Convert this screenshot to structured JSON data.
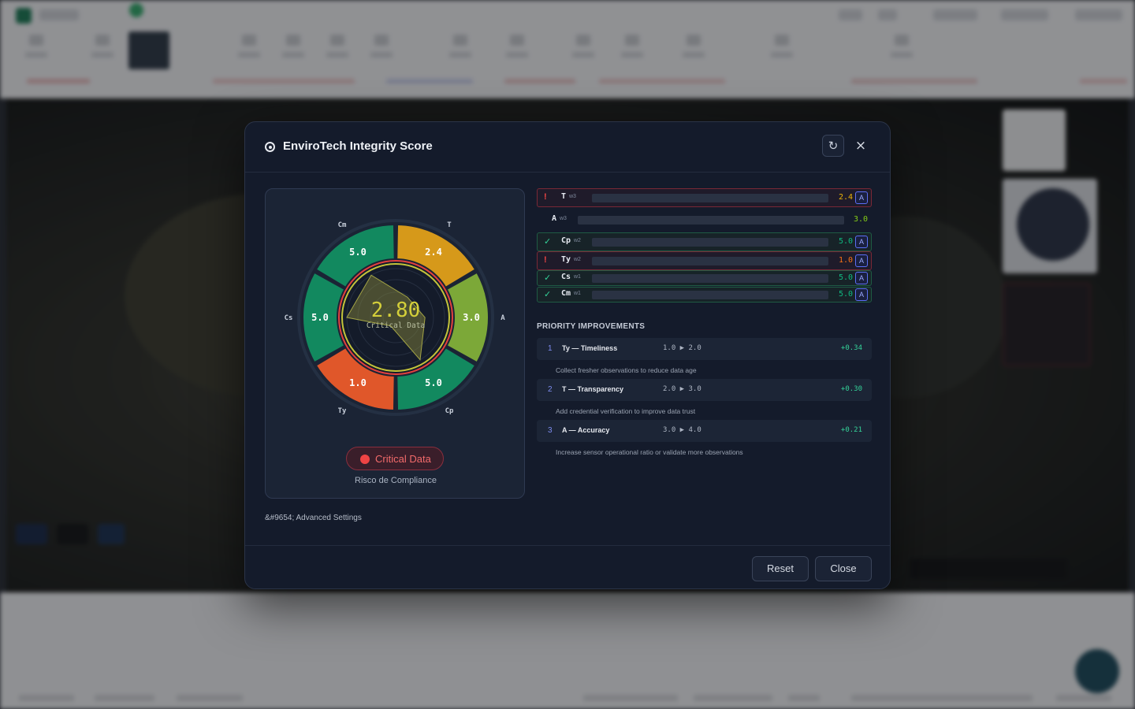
{
  "modal": {
    "title": "EnviroTech Integrity Score",
    "refresh_icon": "↻",
    "close_icon": "×",
    "advanced_settings": "&#9654; Advanced Settings"
  },
  "gauge": {
    "score": "2.80",
    "score_label": "Critical Data",
    "status_text": "Critical Data",
    "status_sub": "Risco de Compliance",
    "status_color": "#ef4444",
    "segments": [
      {
        "code": "T",
        "value": "2.4",
        "color": "#d6991a"
      },
      {
        "code": "A",
        "value": "3.0",
        "color": "#7ca838"
      },
      {
        "code": "Cp",
        "value": "5.0",
        "color": "#12895f"
      },
      {
        "code": "Ty",
        "value": "1.0",
        "color": "#e0572a"
      },
      {
        "code": "Cs",
        "value": "5.0",
        "color": "#12895f"
      },
      {
        "code": "Cm",
        "value": "5.0",
        "color": "#12895f"
      }
    ]
  },
  "dimensions": [
    {
      "mark": "!",
      "code": "T",
      "weight": "w3",
      "value": "2.4",
      "state": "bad",
      "value_color": "#eab308",
      "badge": "A"
    },
    {
      "mark": "",
      "code": "A",
      "weight": "w3",
      "value": "3.0",
      "state": "plain",
      "value_color": "#84cc16",
      "badge": ""
    },
    {
      "mark": "✓",
      "code": "Cp",
      "weight": "w2",
      "value": "5.0",
      "state": "good",
      "value_color": "#10b981",
      "badge": "A"
    },
    {
      "mark": "!",
      "code": "Ty",
      "weight": "w2",
      "value": "1.0",
      "state": "bad",
      "value_color": "#f97316",
      "badge": "A"
    },
    {
      "mark": "✓",
      "code": "Cs",
      "weight": "w1",
      "value": "5.0",
      "state": "good",
      "value_color": "#10b981",
      "badge": "A"
    },
    {
      "mark": "✓",
      "code": "Cm",
      "weight": "w1",
      "value": "5.0",
      "state": "good",
      "value_color": "#10b981",
      "badge": "A"
    }
  ],
  "priority": {
    "title": "PRIORITY IMPROVEMENTS",
    "items": [
      {
        "num": "1",
        "name": "Ty — Timeliness",
        "range": "1.0 ▶ 2.0",
        "gain": "+0.34",
        "desc": "Collect fresher observations to reduce data age"
      },
      {
        "num": "2",
        "name": "T — Transparency",
        "range": "2.0 ▶ 3.0",
        "gain": "+0.30",
        "desc": "Add credential verification to improve data trust"
      },
      {
        "num": "3",
        "name": "A — Accuracy",
        "range": "3.0 ▶ 4.0",
        "gain": "+0.21",
        "desc": "Increase sensor operational ratio or validate more observations"
      }
    ]
  },
  "footer": {
    "reset_label": "Reset",
    "close_label": "Close"
  }
}
